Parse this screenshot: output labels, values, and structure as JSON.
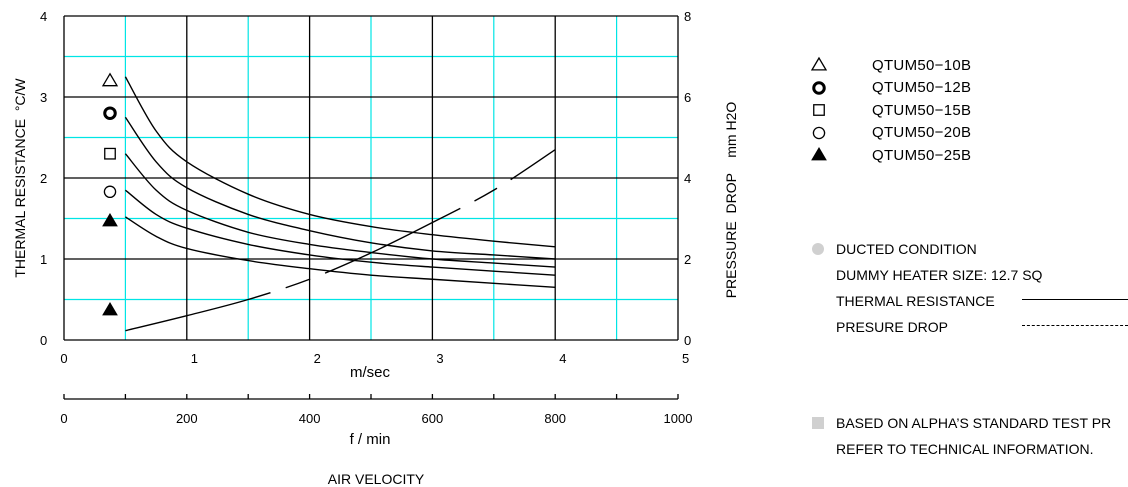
{
  "chart_data": {
    "type": "line",
    "x_axis_velocity": {
      "label": "m/sec",
      "ticks": [
        "0",
        "1",
        "2",
        "3",
        "4",
        "5"
      ],
      "range": [
        0,
        5
      ]
    },
    "x_axis_flow": {
      "label": "f / min",
      "ticks": [
        "0",
        "200",
        "400",
        "600",
        "800",
        "1000"
      ],
      "range": [
        0,
        1000
      ]
    },
    "x_axis_title": "AIR VELOCITY",
    "y_axis_left": {
      "label": "THERMAL RESISTANCE  °C/W",
      "ticks": [
        "0",
        "1",
        "2",
        "3",
        "4"
      ],
      "range": [
        0,
        4
      ]
    },
    "y_axis_right": {
      "label": "PRESSURE  DROP    mm H2O",
      "ticks": [
        "0",
        "2",
        "4",
        "6",
        "8"
      ],
      "range": [
        0,
        8
      ]
    },
    "grid": true,
    "series": [
      {
        "name": "QTUM50-10B",
        "marker": "triangle-open",
        "marker_value": 3.2,
        "x": [
          0.5,
          0.75,
          1.0,
          1.5,
          2.0,
          2.5,
          3.0,
          3.5,
          4.0
        ],
        "y": [
          3.25,
          2.58,
          2.2,
          1.8,
          1.55,
          1.4,
          1.3,
          1.22,
          1.15
        ]
      },
      {
        "name": "QTUM50-12B",
        "marker": "circle-bold",
        "marker_value": 2.8,
        "x": [
          0.5,
          0.75,
          1.0,
          1.5,
          2.0,
          2.5,
          3.0,
          3.5,
          4.0
        ],
        "y": [
          2.75,
          2.2,
          1.88,
          1.55,
          1.35,
          1.2,
          1.1,
          1.05,
          1.0
        ]
      },
      {
        "name": "QTUM50-15B",
        "marker": "square-open",
        "marker_value": 2.3,
        "x": [
          0.5,
          0.75,
          1.0,
          1.5,
          2.0,
          2.5,
          3.0,
          3.5,
          4.0
        ],
        "y": [
          2.3,
          1.85,
          1.6,
          1.33,
          1.18,
          1.08,
          1.0,
          0.95,
          0.9
        ]
      },
      {
        "name": "QTUM50-20B",
        "marker": "circle-open",
        "marker_value": 1.83,
        "x": [
          0.5,
          0.75,
          1.0,
          1.5,
          2.0,
          2.5,
          3.0,
          3.5,
          4.0
        ],
        "y": [
          1.85,
          1.55,
          1.38,
          1.18,
          1.05,
          0.96,
          0.9,
          0.85,
          0.8
        ]
      },
      {
        "name": "QTUM50-25B",
        "marker": "triangle-filled",
        "marker_value": 1.47,
        "x": [
          0.5,
          0.75,
          1.0,
          1.5,
          2.0,
          2.5,
          3.0,
          3.5,
          4.0
        ],
        "y": [
          1.52,
          1.28,
          1.13,
          0.98,
          0.88,
          0.8,
          0.75,
          0.7,
          0.65
        ]
      }
    ],
    "pressure_drop": {
      "marker": "triangle-filled",
      "marker_value": 0.37,
      "x": [
        0.5,
        1.0,
        1.5,
        2.0,
        2.5,
        3.0,
        3.5,
        4.0
      ],
      "y": [
        0.23,
        0.6,
        1.0,
        1.5,
        2.15,
        2.9,
        3.7,
        4.7
      ]
    }
  },
  "legend": [
    {
      "symbol": "triangle-open",
      "label": "QTUM50−10B"
    },
    {
      "symbol": "circle-bold",
      "label": "QTUM50−12B"
    },
    {
      "symbol": "square-open",
      "label": "QTUM50−15B"
    },
    {
      "symbol": "circle-open",
      "label": "QTUM50−20B"
    },
    {
      "symbol": "triangle-filled",
      "label": "QTUM50−25B"
    }
  ],
  "notes": {
    "ducted": "DUCTED CONDITION",
    "dummy_heater": "DUMMY HEATER SIZE: 12.7 SQ",
    "thermal_resistance": "THERMAL RESISTANCE",
    "pressure_drop": "PRESURE DROP",
    "test_procedure": "BASED ON ALPHA’S STANDARD TEST PR",
    "refer": "REFER TO TECHNICAL INFORMATION."
  },
  "colors": {
    "grid_major": "#000000",
    "grid_minor": "#00e5e5",
    "bullet": "#d0d0d0"
  }
}
